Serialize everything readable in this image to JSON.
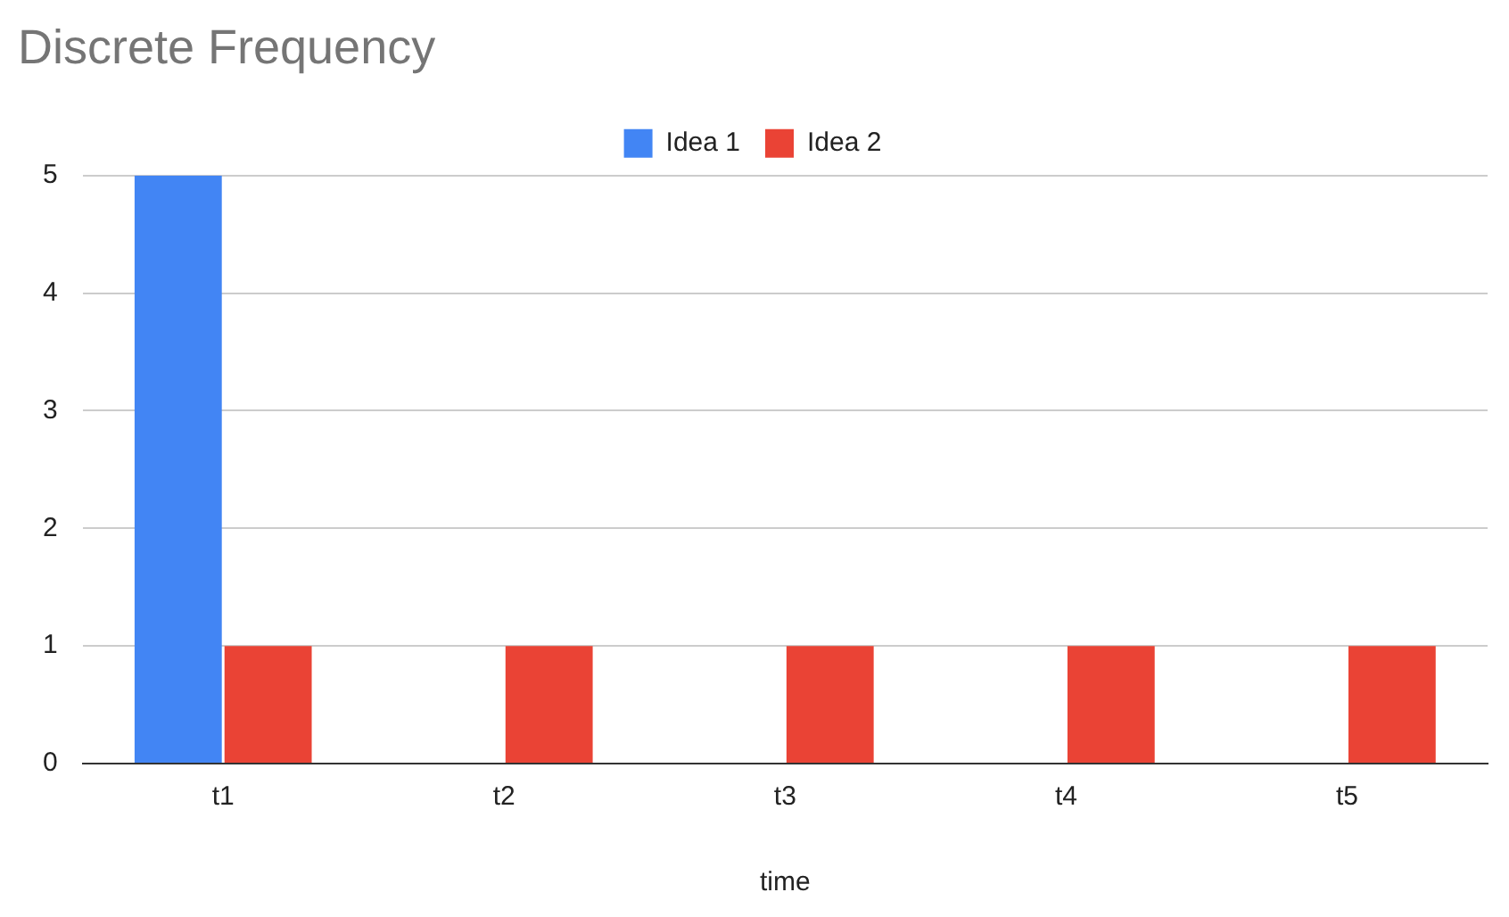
{
  "chart_data": {
    "type": "bar",
    "title": "Discrete Frequency",
    "xlabel": "time",
    "categories": [
      "t1",
      "t2",
      "t3",
      "t4",
      "t5"
    ],
    "series": [
      {
        "name": "Idea 1",
        "color": "#4285f4",
        "values": [
          5,
          null,
          null,
          null,
          null
        ]
      },
      {
        "name": "Idea 2",
        "color": "#ea4335",
        "values": [
          1,
          1,
          1,
          1,
          1
        ]
      }
    ],
    "ylim": [
      0,
      5
    ],
    "yticks": [
      0,
      1,
      2,
      3,
      4,
      5
    ],
    "grid": "y",
    "legend": "top"
  }
}
